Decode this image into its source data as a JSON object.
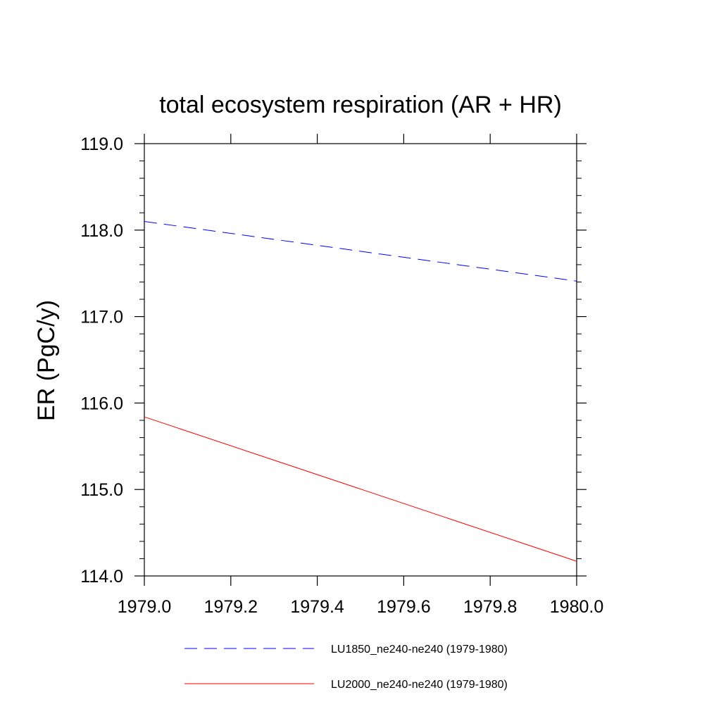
{
  "chart_data": {
    "type": "line",
    "title": "total ecosystem respiration (AR + HR)",
    "xlabel": "",
    "ylabel": "ER  (PgC/y)",
    "xlim": [
      1979.0,
      1980.0
    ],
    "ylim": [
      114.0,
      119.0
    ],
    "x_ticks": [
      "1979.0",
      "1979.2",
      "1979.4",
      "1979.6",
      "1979.8",
      "1980.0"
    ],
    "y_ticks": [
      "114.0",
      "115.0",
      "116.0",
      "117.0",
      "118.0",
      "119.0"
    ],
    "grid": false,
    "legend_position": "bottom",
    "series": [
      {
        "name": "LU1850_ne240-ne240 (1979-1980)",
        "color": "#0000ff",
        "line_style": "dashed",
        "x": [
          1979.0,
          1980.0
        ],
        "y": [
          118.1,
          117.41
        ]
      },
      {
        "name": "LU2000_ne240-ne240 (1979-1980)",
        "color": "#ff0000",
        "line_style": "solid",
        "x": [
          1979.0,
          1980.0
        ],
        "y": [
          115.84,
          114.17
        ]
      }
    ]
  }
}
